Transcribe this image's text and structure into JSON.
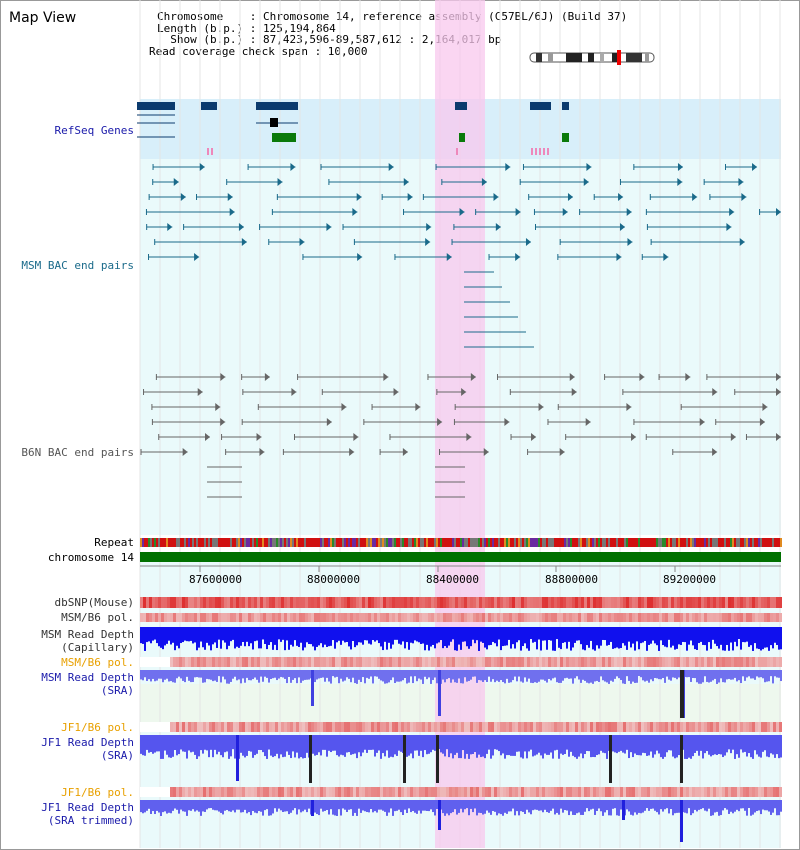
{
  "window": {
    "title": "Map View"
  },
  "info": {
    "chromosome": "Chromosome    : Chromosome 14, reference assembly (C57BL/6J) (Build 37)",
    "length": "Length (b.p.) : 125,194,864",
    "show": "  Show (b.p.) : 87,423,596-89,587,612 : 2,164,017 bp",
    "span": "Read coverage check span : 10,000"
  },
  "tracks": {
    "refseq": "RefSeq Genes",
    "msm_bac": "MSM BAC end pairs",
    "b6n_bac": "B6N BAC end pairs",
    "repeat": "Repeat",
    "chrom": "chromosome 14",
    "dbsnp": "dbSNP(Mouse)",
    "msm_b6_pol": "MSM/B6 pol.",
    "msm_depth_cap_1": "MSM Read Depth",
    "msm_depth_cap_2": "(Capillary)",
    "msm_b6_pol2": "MSM/B6 pol.",
    "msm_depth_sra_1": "MSM Read Depth",
    "msm_depth_sra_2": "(SRA)",
    "jf1_b6_pol": "JF1/B6 pol.",
    "jf1_depth_sra_1": "JF1 Read Depth",
    "jf1_depth_sra_2": "(SRA)",
    "jf1_b6_pol2": "JF1/B6 pol.",
    "jf1_depth_tr_1": "JF1 Read Depth",
    "jf1_depth_tr_2": "(SRA trimmed)"
  },
  "axis": {
    "ticks": [
      "87600000",
      "88000000",
      "88400000",
      "88800000",
      "89200000"
    ]
  },
  "colors": {
    "refseq_label": "#1a1aaa",
    "msm_label": "#1a6a8a",
    "b6n_label": "#555555",
    "orange_label": "#e8a000",
    "blue_label": "#1a1aaa",
    "highlight": "#f8c8ee"
  }
}
